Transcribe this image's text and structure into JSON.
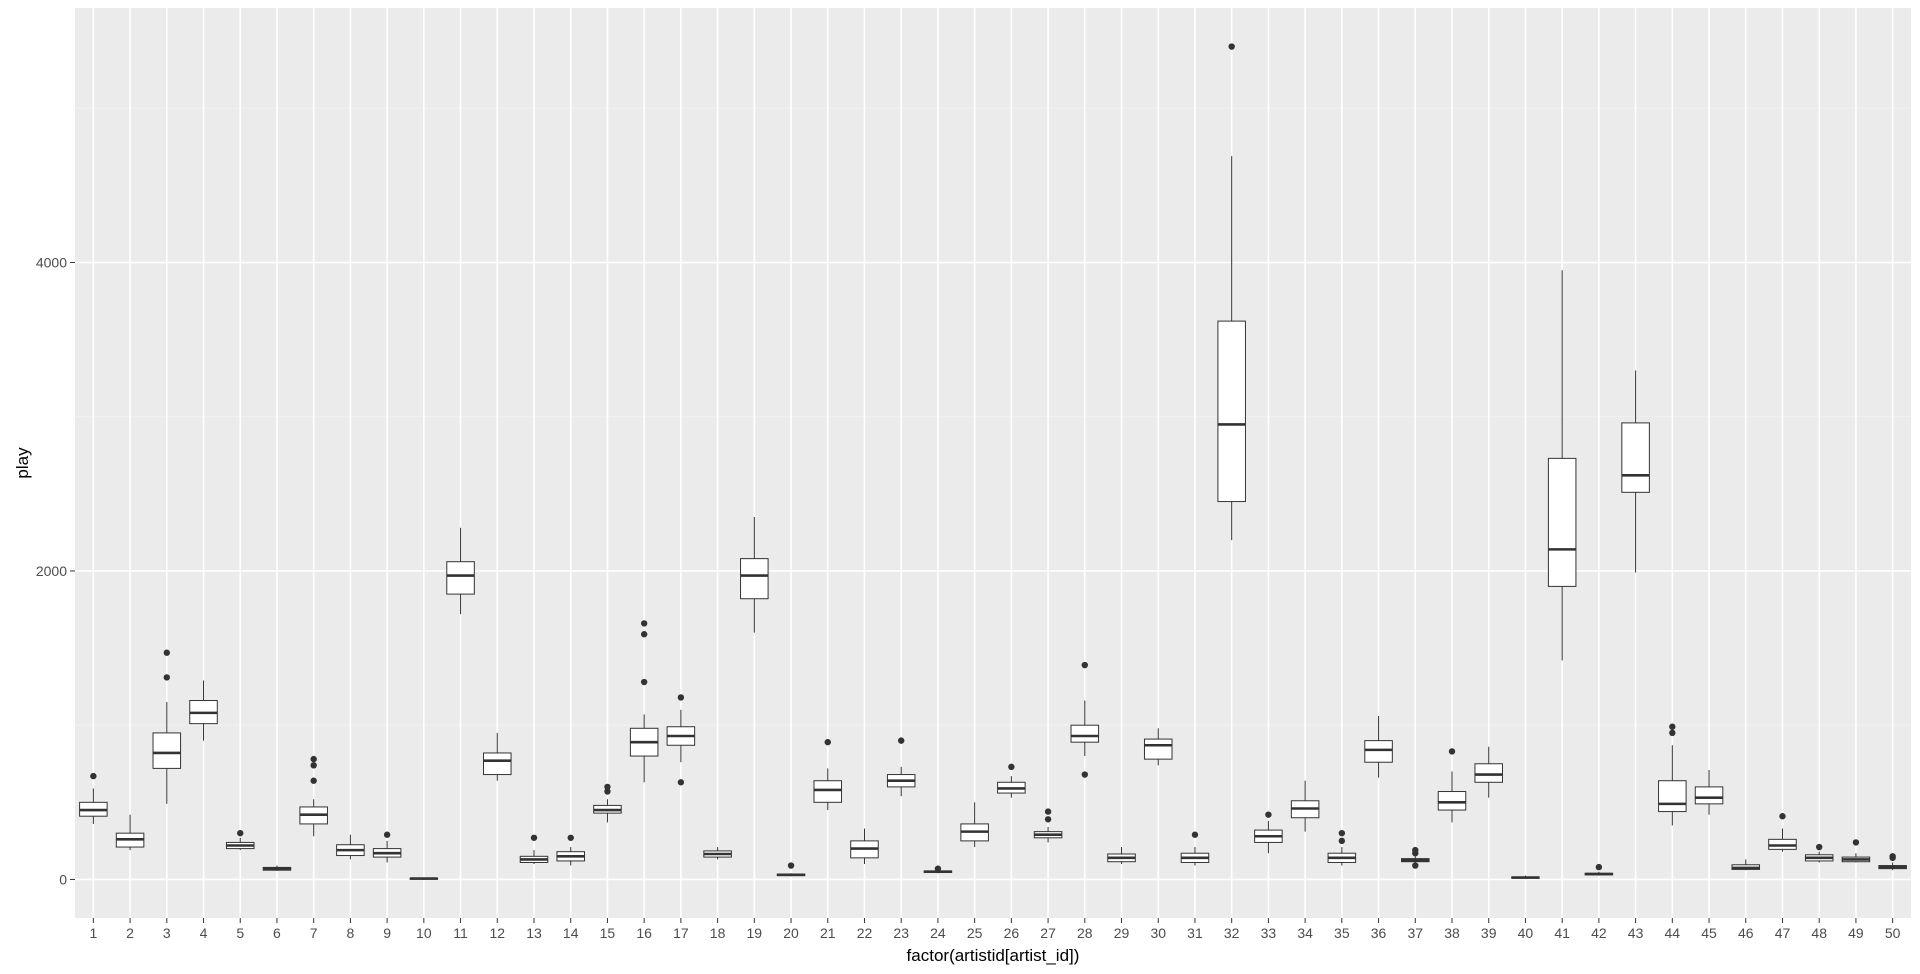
{
  "chart_data": {
    "type": "boxplot",
    "title": "",
    "xlabel": "factor(artistid[artist_id])",
    "ylabel": "play",
    "ylim": [
      -250,
      5650
    ],
    "yticks": [
      0,
      2000,
      4000
    ],
    "ytick_labels": [
      "0",
      "2000",
      "4000"
    ],
    "grid": true,
    "legend": "none",
    "categories": [
      "1",
      "2",
      "3",
      "4",
      "5",
      "6",
      "7",
      "8",
      "9",
      "10",
      "11",
      "12",
      "13",
      "14",
      "15",
      "16",
      "17",
      "18",
      "19",
      "20",
      "21",
      "22",
      "23",
      "24",
      "25",
      "26",
      "27",
      "28",
      "29",
      "30",
      "31",
      "32",
      "33",
      "34",
      "35",
      "36",
      "37",
      "38",
      "39",
      "40",
      "41",
      "42",
      "43",
      "44",
      "45",
      "46",
      "47",
      "48",
      "49",
      "50"
    ],
    "boxes": [
      {
        "id": "1",
        "whislo": 360,
        "q1": 410,
        "med": 450,
        "q3": 500,
        "whishi": 590,
        "outliers": [
          670
        ]
      },
      {
        "id": "2",
        "whislo": 190,
        "q1": 210,
        "med": 260,
        "q3": 300,
        "whishi": 420,
        "outliers": []
      },
      {
        "id": "3",
        "whislo": 490,
        "q1": 720,
        "med": 820,
        "q3": 950,
        "whishi": 1150,
        "outliers": [
          1310,
          1470
        ]
      },
      {
        "id": "4",
        "whislo": 900,
        "q1": 1010,
        "med": 1080,
        "q3": 1160,
        "whishi": 1290,
        "outliers": []
      },
      {
        "id": "5",
        "whislo": 190,
        "q1": 200,
        "med": 220,
        "q3": 240,
        "whishi": 270,
        "outliers": [
          300
        ]
      },
      {
        "id": "6",
        "whislo": 55,
        "q1": 60,
        "med": 70,
        "q3": 78,
        "whishi": 90,
        "outliers": []
      },
      {
        "id": "7",
        "whislo": 280,
        "q1": 360,
        "med": 420,
        "q3": 470,
        "whishi": 520,
        "outliers": [
          640,
          740,
          780
        ]
      },
      {
        "id": "8",
        "whislo": 130,
        "q1": 155,
        "med": 190,
        "q3": 225,
        "whishi": 290,
        "outliers": []
      },
      {
        "id": "9",
        "whislo": 110,
        "q1": 145,
        "med": 170,
        "q3": 200,
        "whishi": 250,
        "outliers": [
          290
        ]
      },
      {
        "id": "10",
        "whislo": 2,
        "q1": 4,
        "med": 6,
        "q3": 8,
        "whishi": 12,
        "outliers": []
      },
      {
        "id": "11",
        "whislo": 1720,
        "q1": 1850,
        "med": 1970,
        "q3": 2060,
        "whishi": 2280,
        "outliers": []
      },
      {
        "id": "12",
        "whislo": 640,
        "q1": 680,
        "med": 770,
        "q3": 820,
        "whishi": 950,
        "outliers": []
      },
      {
        "id": "13",
        "whislo": 100,
        "q1": 110,
        "med": 130,
        "q3": 150,
        "whishi": 190,
        "outliers": [
          270
        ]
      },
      {
        "id": "14",
        "whislo": 90,
        "q1": 120,
        "med": 150,
        "q3": 180,
        "whishi": 210,
        "outliers": [
          270
        ]
      },
      {
        "id": "15",
        "whislo": 370,
        "q1": 430,
        "med": 450,
        "q3": 480,
        "whishi": 520,
        "outliers": [
          570,
          600
        ]
      },
      {
        "id": "16",
        "whislo": 630,
        "q1": 800,
        "med": 890,
        "q3": 980,
        "whishi": 1070,
        "outliers": [
          1280,
          1590,
          1660
        ]
      },
      {
        "id": "17",
        "whislo": 760,
        "q1": 870,
        "med": 930,
        "q3": 990,
        "whishi": 1100,
        "outliers": [
          630,
          1180
        ]
      },
      {
        "id": "18",
        "whislo": 130,
        "q1": 145,
        "med": 165,
        "q3": 185,
        "whishi": 210,
        "outliers": []
      },
      {
        "id": "19",
        "whislo": 1600,
        "q1": 1820,
        "med": 1970,
        "q3": 2080,
        "whishi": 2350,
        "outliers": []
      },
      {
        "id": "20",
        "whislo": 20,
        "q1": 25,
        "med": 30,
        "q3": 35,
        "whishi": 40,
        "outliers": [
          90
        ]
      },
      {
        "id": "21",
        "whislo": 450,
        "q1": 500,
        "med": 580,
        "q3": 640,
        "whishi": 720,
        "outliers": [
          890
        ]
      },
      {
        "id": "22",
        "whislo": 100,
        "q1": 140,
        "med": 200,
        "q3": 250,
        "whishi": 330,
        "outliers": []
      },
      {
        "id": "23",
        "whislo": 540,
        "q1": 600,
        "med": 640,
        "q3": 680,
        "whishi": 730,
        "outliers": [
          900
        ]
      },
      {
        "id": "24",
        "whislo": 40,
        "q1": 45,
        "med": 50,
        "q3": 55,
        "whishi": 60,
        "outliers": [
          70
        ]
      },
      {
        "id": "25",
        "whislo": 210,
        "q1": 250,
        "med": 310,
        "q3": 360,
        "whishi": 500,
        "outliers": []
      },
      {
        "id": "26",
        "whislo": 530,
        "q1": 560,
        "med": 590,
        "q3": 630,
        "whishi": 670,
        "outliers": [
          730
        ]
      },
      {
        "id": "27",
        "whislo": 240,
        "q1": 270,
        "med": 290,
        "q3": 310,
        "whishi": 340,
        "outliers": [
          390,
          440
        ]
      },
      {
        "id": "28",
        "whislo": 800,
        "q1": 890,
        "med": 930,
        "q3": 1000,
        "whishi": 1160,
        "outliers": [
          680,
          1390
        ]
      },
      {
        "id": "29",
        "whislo": 100,
        "q1": 115,
        "med": 140,
        "q3": 165,
        "whishi": 210,
        "outliers": []
      },
      {
        "id": "30",
        "whislo": 740,
        "q1": 780,
        "med": 870,
        "q3": 910,
        "whishi": 980,
        "outliers": []
      },
      {
        "id": "31",
        "whislo": 90,
        "q1": 110,
        "med": 140,
        "q3": 170,
        "whishi": 210,
        "outliers": [
          290
        ]
      },
      {
        "id": "32",
        "whislo": 2200,
        "q1": 2450,
        "med": 2950,
        "q3": 3620,
        "whishi": 4690,
        "outliers": [
          5400
        ]
      },
      {
        "id": "33",
        "whislo": 170,
        "q1": 240,
        "med": 280,
        "q3": 320,
        "whishi": 380,
        "outliers": [
          420
        ]
      },
      {
        "id": "34",
        "whislo": 310,
        "q1": 400,
        "med": 460,
        "q3": 510,
        "whishi": 640,
        "outliers": []
      },
      {
        "id": "35",
        "whislo": 90,
        "q1": 110,
        "med": 140,
        "q3": 170,
        "whishi": 210,
        "outliers": [
          250,
          300
        ]
      },
      {
        "id": "36",
        "whislo": 660,
        "q1": 760,
        "med": 840,
        "q3": 900,
        "whishi": 1060,
        "outliers": []
      },
      {
        "id": "37",
        "whislo": 110,
        "q1": 115,
        "med": 125,
        "q3": 135,
        "whishi": 150,
        "outliers": [
          90,
          170,
          190
        ]
      },
      {
        "id": "38",
        "whislo": 370,
        "q1": 450,
        "med": 500,
        "q3": 570,
        "whishi": 700,
        "outliers": [
          830
        ]
      },
      {
        "id": "39",
        "whislo": 530,
        "q1": 630,
        "med": 680,
        "q3": 750,
        "whishi": 860,
        "outliers": []
      },
      {
        "id": "40",
        "whislo": 5,
        "q1": 8,
        "med": 12,
        "q3": 16,
        "whishi": 25,
        "outliers": []
      },
      {
        "id": "41",
        "whislo": 1420,
        "q1": 1900,
        "med": 2140,
        "q3": 2730,
        "whishi": 3950,
        "outliers": []
      },
      {
        "id": "42",
        "whislo": 25,
        "q1": 30,
        "med": 35,
        "q3": 40,
        "whishi": 50,
        "outliers": [
          80
        ]
      },
      {
        "id": "43",
        "whislo": 1990,
        "q1": 2510,
        "med": 2620,
        "q3": 2960,
        "whishi": 3300,
        "outliers": []
      },
      {
        "id": "44",
        "whislo": 350,
        "q1": 440,
        "med": 490,
        "q3": 640,
        "whishi": 870,
        "outliers": [
          950,
          990
        ]
      },
      {
        "id": "45",
        "whislo": 420,
        "q1": 490,
        "med": 530,
        "q3": 600,
        "whishi": 710,
        "outliers": []
      },
      {
        "id": "46",
        "whislo": 60,
        "q1": 65,
        "med": 75,
        "q3": 95,
        "whishi": 130,
        "outliers": []
      },
      {
        "id": "47",
        "whislo": 180,
        "q1": 195,
        "med": 220,
        "q3": 260,
        "whishi": 330,
        "outliers": [
          410
        ]
      },
      {
        "id": "48",
        "whislo": 110,
        "q1": 120,
        "med": 140,
        "q3": 160,
        "whishi": 180,
        "outliers": [
          210
        ]
      },
      {
        "id": "49",
        "whislo": 110,
        "q1": 115,
        "med": 130,
        "q3": 145,
        "whishi": 170,
        "outliers": [
          240
        ]
      },
      {
        "id": "50",
        "whislo": 60,
        "q1": 70,
        "med": 80,
        "q3": 90,
        "whishi": 110,
        "outliers": [
          140,
          150
        ]
      }
    ]
  },
  "colors": {
    "panel_background": "#ebebeb",
    "grid_major": "#ffffff",
    "grid_minor": "#f4f4f4",
    "box_fill": "#ffffff",
    "box_stroke": "#333333",
    "tick_text": "#4d4d4d",
    "axis_title": "#000000"
  }
}
